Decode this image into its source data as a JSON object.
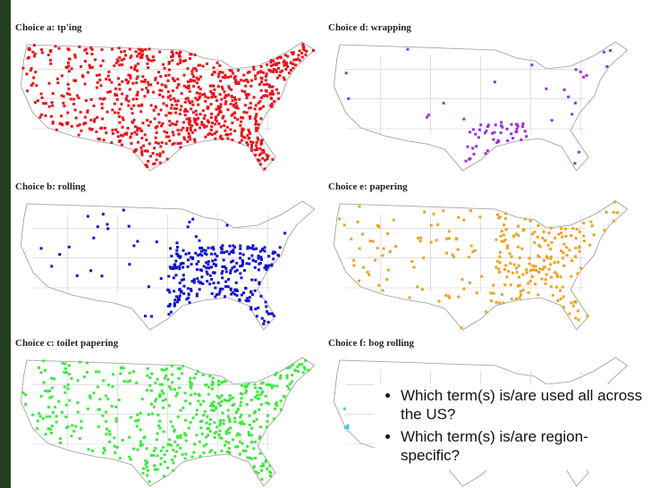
{
  "panels": [
    {
      "title": "Choice a: tp'ing"
    },
    {
      "title": "Choice d: wrapping"
    },
    {
      "title": "Choice b: rolling"
    },
    {
      "title": "Choice e: papering"
    },
    {
      "title": "Choice c: toilet papering"
    },
    {
      "title": "Choice f: bog rolling"
    }
  ],
  "bullets": [
    "Which term(s) is/are used all across the US?",
    "Which term(s) is/are region-specific?"
  ]
}
